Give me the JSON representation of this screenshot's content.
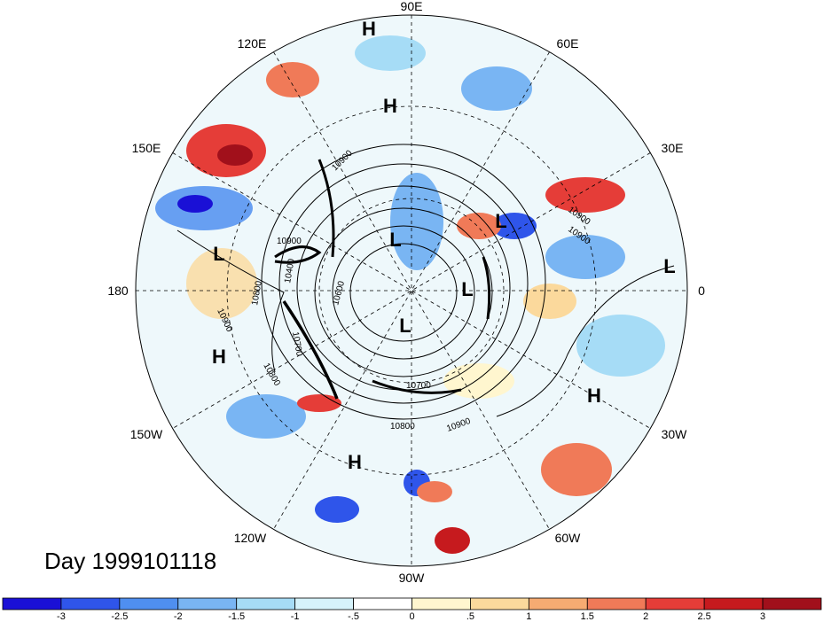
{
  "title": "Day 1999101118",
  "longitude_labels": [
    "90E",
    "60E",
    "30E",
    "0",
    "30W",
    "60W",
    "90W",
    "120W",
    "150W",
    "180",
    "150E",
    "120E"
  ],
  "pressure_centers": [
    "H",
    "H",
    "L",
    "L",
    "L",
    "L",
    "L",
    "H",
    "H",
    "H",
    "L"
  ],
  "contour_labels": [
    "10900",
    "10900",
    "10900",
    "10800",
    "10900",
    "10400",
    "10600",
    "10700",
    "10800",
    "10900",
    "10800",
    "10900",
    "10700"
  ],
  "colorbar": {
    "ticks": [
      "-3",
      "-2.5",
      "-2",
      "-1.5",
      "-1",
      "-.5",
      "0",
      ".5",
      "1",
      "1.5",
      "2",
      "2.5",
      "3"
    ],
    "colors": [
      "#1a10d6",
      "#2f55ea",
      "#4f8ff0",
      "#79b5f3",
      "#a6dcf6",
      "#d6f3fb",
      "#ffffff",
      "#fff6cf",
      "#fbd99c",
      "#f6ab72",
      "#f07a58",
      "#e53d38",
      "#c61a1e",
      "#a1101b"
    ]
  }
}
